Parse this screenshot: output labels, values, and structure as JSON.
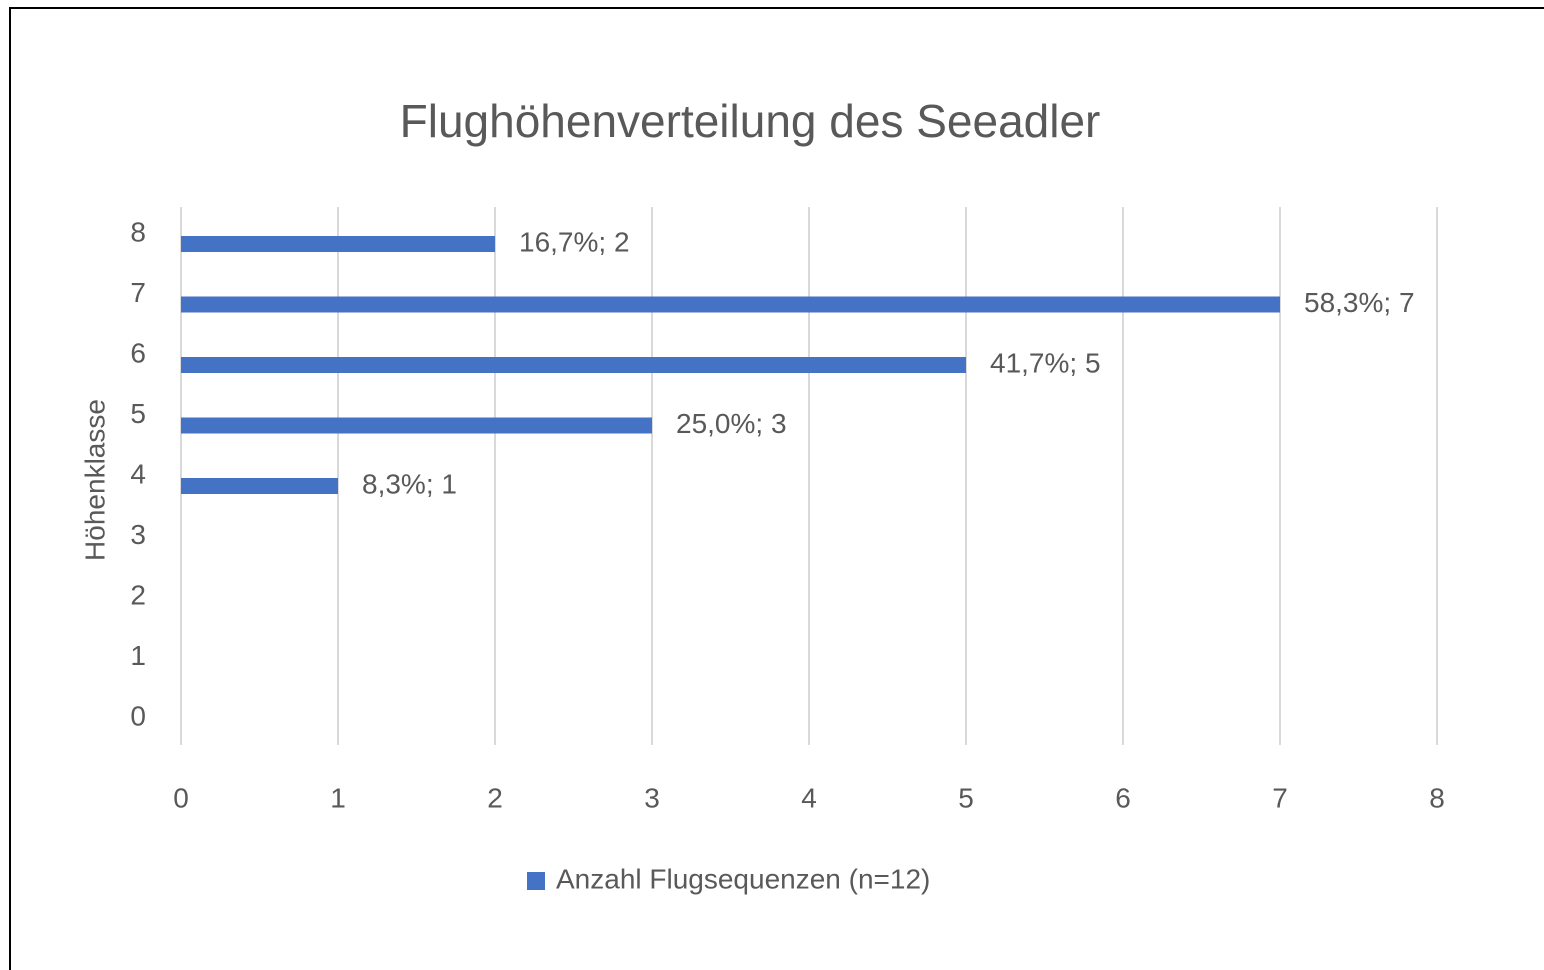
{
  "chart_data": {
    "type": "bar",
    "orientation": "horizontal",
    "title": "Flughöhenverteilung des Seeadler",
    "y_label": "Höhenklasse",
    "y": [
      4,
      5,
      6,
      7,
      8
    ],
    "series": [
      {
        "name": "Anzahl Flugsequenzen (n=12)",
        "color": "#4472c4",
        "values": [
          1,
          3,
          5,
          7,
          2
        ],
        "value_labels": [
          "8,3%; 1",
          "25,0%; 3",
          "41,7%; 5",
          "58,3%; 7",
          "16,7%; 2"
        ]
      }
    ],
    "xlim": [
      0,
      8
    ],
    "xticks": [
      0,
      1,
      2,
      3,
      4,
      5,
      6,
      7,
      8
    ],
    "ylim": [
      0,
      8
    ],
    "yticks": [
      0,
      1,
      2,
      3,
      4,
      5,
      6,
      7,
      8
    ],
    "grid": true,
    "legend": "bottom"
  }
}
